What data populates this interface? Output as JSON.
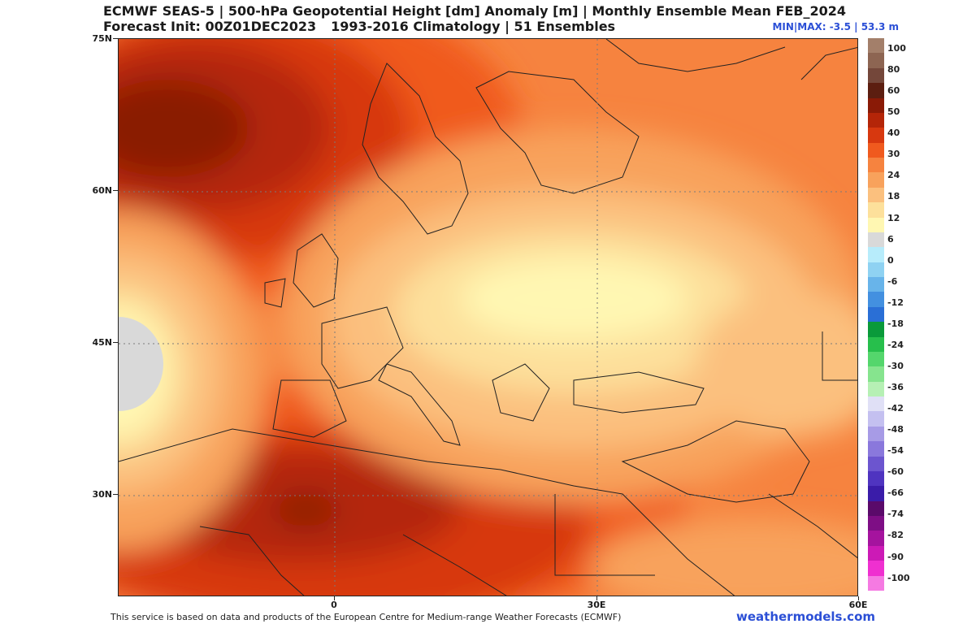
{
  "header": {
    "title_line1": "ECMWF SEAS-5 | 500-hPa Geopotential Height [dm] Anomaly [m] | Monthly Ensemble Mean FEB_2024",
    "init": "Forecast Init: 00Z01DEC2023",
    "climatology": "1993-2016 Climatology | 51 Ensembles",
    "minmax": "MIN|MAX: -3.5 | 53.3 m"
  },
  "axes": {
    "lat_labels": [
      "75N",
      "60N",
      "45N",
      "30N"
    ],
    "lon_labels": [
      "0",
      "30E",
      "60E"
    ]
  },
  "colorbar": {
    "labels": [
      "100",
      "80",
      "60",
      "50",
      "40",
      "30",
      "24",
      "18",
      "12",
      "6",
      "0",
      "-6",
      "-12",
      "-18",
      "-24",
      "-30",
      "-36",
      "-42",
      "-48",
      "-54",
      "-60",
      "-66",
      "-74",
      "-82",
      "-90",
      "-100"
    ],
    "colors": [
      "#a37f6a",
      "#8d6552",
      "#74473a",
      "#5c1e10",
      "#8a1a06",
      "#b42508",
      "#d7380f",
      "#f05a1e",
      "#f6833f",
      "#f8a25c",
      "#fbc07e",
      "#fde09b",
      "#fff7b2",
      "#d9d9d9",
      "#b7ecfb",
      "#8fd2f2",
      "#68b4ea",
      "#4390e0",
      "#2a6fd6",
      "#0a9a3a",
      "#27bf4c",
      "#54d66c",
      "#86e48e",
      "#b6f0b4",
      "#e0e0f6",
      "#c4c0f0",
      "#a79be6",
      "#8a78dc",
      "#6c55cf",
      "#4f34c0",
      "#3a1ca9",
      "#5a0a6a",
      "#7e0e85",
      "#a5139e",
      "#cc1ab6",
      "#ef30d0",
      "#f57ae2"
    ]
  },
  "footer": "This service is based on data and products of the European Centre for Medium-range Weather Forecasts (ECMWF)",
  "brand": "weathermodels.com"
}
